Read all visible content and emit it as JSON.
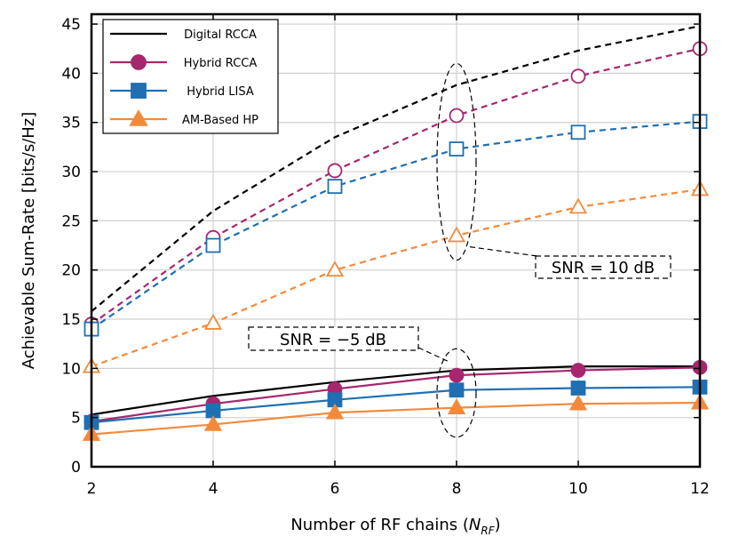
{
  "chart_data": {
    "type": "line",
    "xlabel": "Number of RF chains (",
    "xlabel_math": "N",
    "xlabel_sub": "RF",
    "xlabel_close": ")",
    "ylabel": "Achievable Sum-Rate [bits/s/Hz]",
    "x": [
      2,
      4,
      6,
      8,
      10,
      12
    ],
    "xlim": [
      2,
      12
    ],
    "ylim": [
      0,
      46
    ],
    "xticks": [
      "2",
      "4",
      "6",
      "8",
      "10",
      "12"
    ],
    "yticks": [
      "0",
      "5",
      "10",
      "15",
      "20",
      "25",
      "30",
      "35",
      "40",
      "45"
    ],
    "grid": true,
    "legend_position": "top-left",
    "series": [
      {
        "name": "Digital RCCA",
        "color": "#000000",
        "marker": "none",
        "snr": "-5 dB",
        "style": "solid",
        "values": [
          5.3,
          7.2,
          8.6,
          9.8,
          10.2,
          10.2
        ]
      },
      {
        "name": "Hybrid RCCA",
        "color": "#a6276e",
        "marker": "circle",
        "snr": "-5 dB",
        "style": "solid",
        "values": [
          4.6,
          6.4,
          7.9,
          9.3,
          9.8,
          10.1
        ]
      },
      {
        "name": "Hybrid LISA",
        "color": "#1f6fb2",
        "marker": "square",
        "snr": "-5 dB",
        "style": "solid",
        "values": [
          4.5,
          5.7,
          6.8,
          7.8,
          8.0,
          8.1
        ]
      },
      {
        "name": "AM-Based HP",
        "color": "#f28a3c",
        "marker": "triangle",
        "snr": "-5 dB",
        "style": "solid",
        "values": [
          3.3,
          4.3,
          5.5,
          6.0,
          6.4,
          6.5
        ]
      },
      {
        "name": "Digital RCCA",
        "color": "#000000",
        "marker": "none",
        "snr": "10 dB",
        "style": "dashed",
        "values": [
          15.8,
          26.0,
          33.5,
          38.8,
          42.3,
          44.8
        ]
      },
      {
        "name": "Hybrid RCCA",
        "color": "#a6276e",
        "marker": "circle",
        "snr": "10 dB",
        "style": "dashed",
        "values": [
          14.5,
          23.3,
          30.1,
          35.7,
          39.7,
          42.5
        ]
      },
      {
        "name": "Hybrid LISA",
        "color": "#1f6fb2",
        "marker": "square",
        "snr": "10 dB",
        "style": "dashed",
        "values": [
          14.0,
          22.5,
          28.5,
          32.3,
          34.0,
          35.1
        ]
      },
      {
        "name": "AM-Based HP",
        "color": "#f28a3c",
        "marker": "triangle",
        "snr": "10 dB",
        "style": "dashed",
        "values": [
          10.2,
          14.6,
          20.0,
          23.5,
          26.4,
          28.2
        ]
      }
    ],
    "annotations": [
      {
        "text": "SNR = 10 dB",
        "encircled_x": 8,
        "encircled_y_range": [
          21,
          41
        ]
      },
      {
        "text": "SNR = −5 dB",
        "encircled_x": 8,
        "encircled_y_range": [
          3,
          12
        ]
      }
    ]
  }
}
